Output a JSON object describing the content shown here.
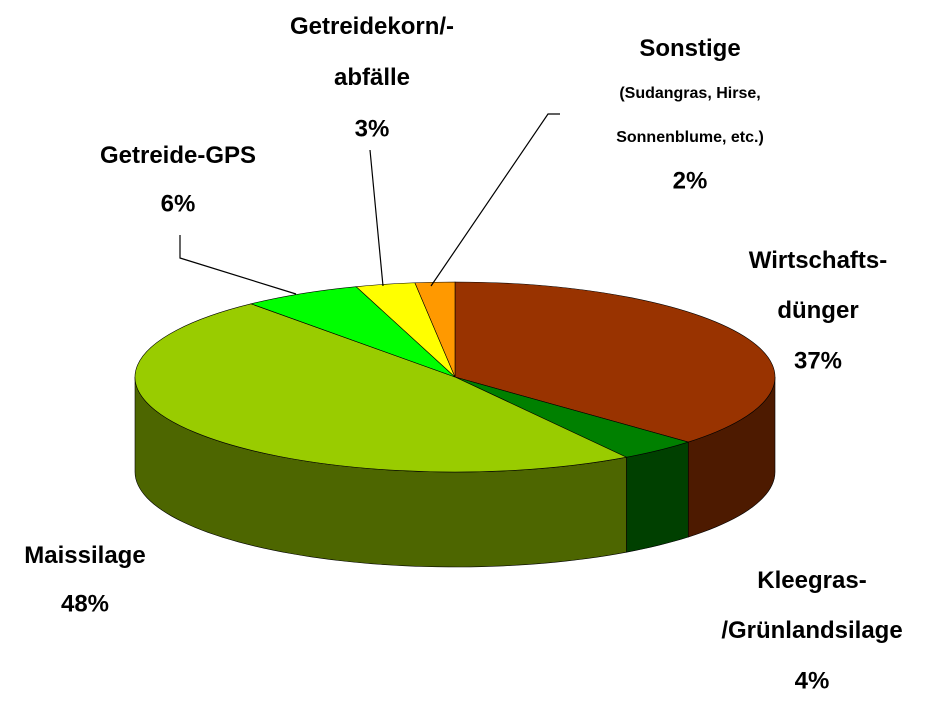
{
  "chart_data": {
    "type": "pie",
    "categories": [
      "Wirtschafts-\ndünger",
      "Kleegras-\n/Grünlandsilage",
      "Maissilage",
      "Getreide-GPS",
      "Getreidekorn/-\nabfälle",
      "Sonstige\n(Sudangras, Hirse,\nSonnenblume, etc.)"
    ],
    "values": [
      37,
      4,
      48,
      6,
      3,
      2
    ],
    "value_labels": [
      "37%",
      "4%",
      "48%",
      "6%",
      "3%",
      "2%"
    ],
    "colors": [
      "#993300",
      "#008000",
      "#99cc00",
      "#00ff00",
      "#ffff00",
      "#ff9900"
    ]
  }
}
